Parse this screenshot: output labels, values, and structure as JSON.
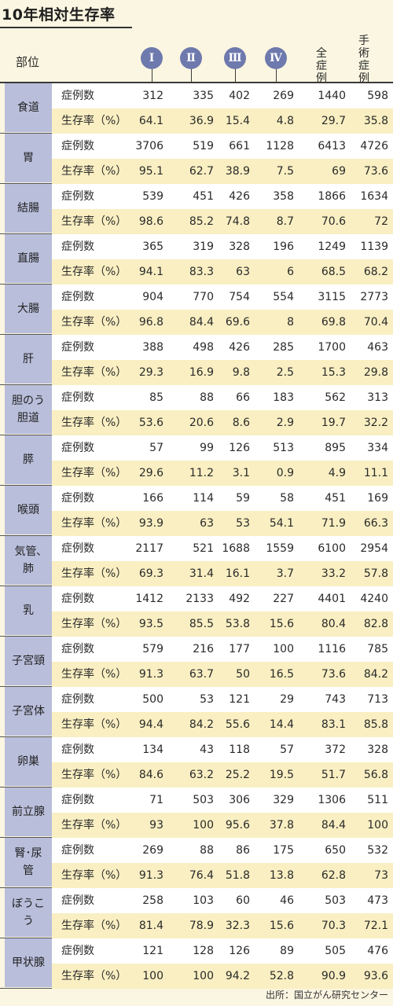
{
  "title": "10年相対生存率",
  "header": {
    "region": "部位",
    "stages": [
      "Ⅰ",
      "Ⅱ",
      "Ⅲ",
      "Ⅳ"
    ],
    "all_cases": "全症例",
    "surgery_cases": "手術症例"
  },
  "row_labels": {
    "count": "症例数",
    "rate": "生存率（%）"
  },
  "rows": [
    {
      "organ": "食道",
      "count": [
        "312",
        "335",
        "402",
        "269",
        "1440",
        "598"
      ],
      "rate": [
        "64.1",
        "36.9",
        "15.4",
        "4.8",
        "29.7",
        "35.8"
      ]
    },
    {
      "organ": "胃",
      "count": [
        "3706",
        "519",
        "661",
        "1128",
        "6413",
        "4726"
      ],
      "rate": [
        "95.1",
        "62.7",
        "38.9",
        "7.5",
        "69",
        "73.6"
      ]
    },
    {
      "organ": "結腸",
      "count": [
        "539",
        "451",
        "426",
        "358",
        "1866",
        "1634"
      ],
      "rate": [
        "98.6",
        "85.2",
        "74.8",
        "8.7",
        "70.6",
        "72"
      ]
    },
    {
      "organ": "直腸",
      "count": [
        "365",
        "319",
        "328",
        "196",
        "1249",
        "1139"
      ],
      "rate": [
        "94.1",
        "83.3",
        "63",
        "6",
        "68.5",
        "68.2"
      ]
    },
    {
      "organ": "大腸",
      "count": [
        "904",
        "770",
        "754",
        "554",
        "3115",
        "2773"
      ],
      "rate": [
        "96.8",
        "84.4",
        "69.6",
        "8",
        "69.8",
        "70.4"
      ]
    },
    {
      "organ": "肝",
      "count": [
        "388",
        "498",
        "426",
        "285",
        "1700",
        "463"
      ],
      "rate": [
        "29.3",
        "16.9",
        "9.8",
        "2.5",
        "15.3",
        "29.8"
      ]
    },
    {
      "organ": "胆のう 胆道",
      "count": [
        "85",
        "88",
        "66",
        "183",
        "562",
        "313"
      ],
      "rate": [
        "53.6",
        "20.6",
        "8.6",
        "2.9",
        "19.7",
        "32.2"
      ]
    },
    {
      "organ": "膵",
      "count": [
        "57",
        "99",
        "126",
        "513",
        "895",
        "334"
      ],
      "rate": [
        "29.6",
        "11.2",
        "3.1",
        "0.9",
        "4.9",
        "11.1"
      ]
    },
    {
      "organ": "喉頭",
      "count": [
        "166",
        "114",
        "59",
        "58",
        "451",
        "169"
      ],
      "rate": [
        "93.9",
        "63",
        "53",
        "54.1",
        "71.9",
        "66.3"
      ]
    },
    {
      "organ": "気管､肺",
      "count": [
        "2117",
        "521",
        "1688",
        "1559",
        "6100",
        "2954"
      ],
      "rate": [
        "69.3",
        "31.4",
        "16.1",
        "3.7",
        "33.2",
        "57.8"
      ]
    },
    {
      "organ": "乳",
      "count": [
        "1412",
        "2133",
        "492",
        "227",
        "4401",
        "4240"
      ],
      "rate": [
        "93.5",
        "85.5",
        "53.8",
        "15.6",
        "80.4",
        "82.8"
      ]
    },
    {
      "organ": "子宮頸",
      "count": [
        "579",
        "216",
        "177",
        "100",
        "1116",
        "785"
      ],
      "rate": [
        "91.3",
        "63.7",
        "50",
        "16.5",
        "73.6",
        "84.2"
      ]
    },
    {
      "organ": "子宮体",
      "count": [
        "500",
        "53",
        "121",
        "29",
        "743",
        "713"
      ],
      "rate": [
        "94.4",
        "84.2",
        "55.6",
        "14.4",
        "83.1",
        "85.8"
      ]
    },
    {
      "organ": "卵巣",
      "count": [
        "134",
        "43",
        "118",
        "57",
        "372",
        "328"
      ],
      "rate": [
        "84.6",
        "63.2",
        "25.2",
        "19.5",
        "51.7",
        "56.8"
      ]
    },
    {
      "organ": "前立腺",
      "count": [
        "71",
        "503",
        "306",
        "329",
        "1306",
        "511"
      ],
      "rate": [
        "93",
        "100",
        "95.6",
        "37.8",
        "84.4",
        "100"
      ]
    },
    {
      "organ": "腎･尿管",
      "count": [
        "269",
        "88",
        "86",
        "175",
        "650",
        "532"
      ],
      "rate": [
        "91.3",
        "76.4",
        "51.8",
        "13.8",
        "62.8",
        "73"
      ]
    },
    {
      "organ": "ぼうこう",
      "count": [
        "258",
        "103",
        "60",
        "46",
        "503",
        "473"
      ],
      "rate": [
        "81.4",
        "78.9",
        "32.3",
        "15.6",
        "70.3",
        "72.1"
      ]
    },
    {
      "organ": "甲状腺",
      "count": [
        "121",
        "128",
        "126",
        "89",
        "505",
        "476"
      ],
      "rate": [
        "100",
        "100",
        "94.2",
        "52.8",
        "90.9",
        "93.6"
      ]
    }
  ],
  "source": "出所：国立がん研究センター"
}
